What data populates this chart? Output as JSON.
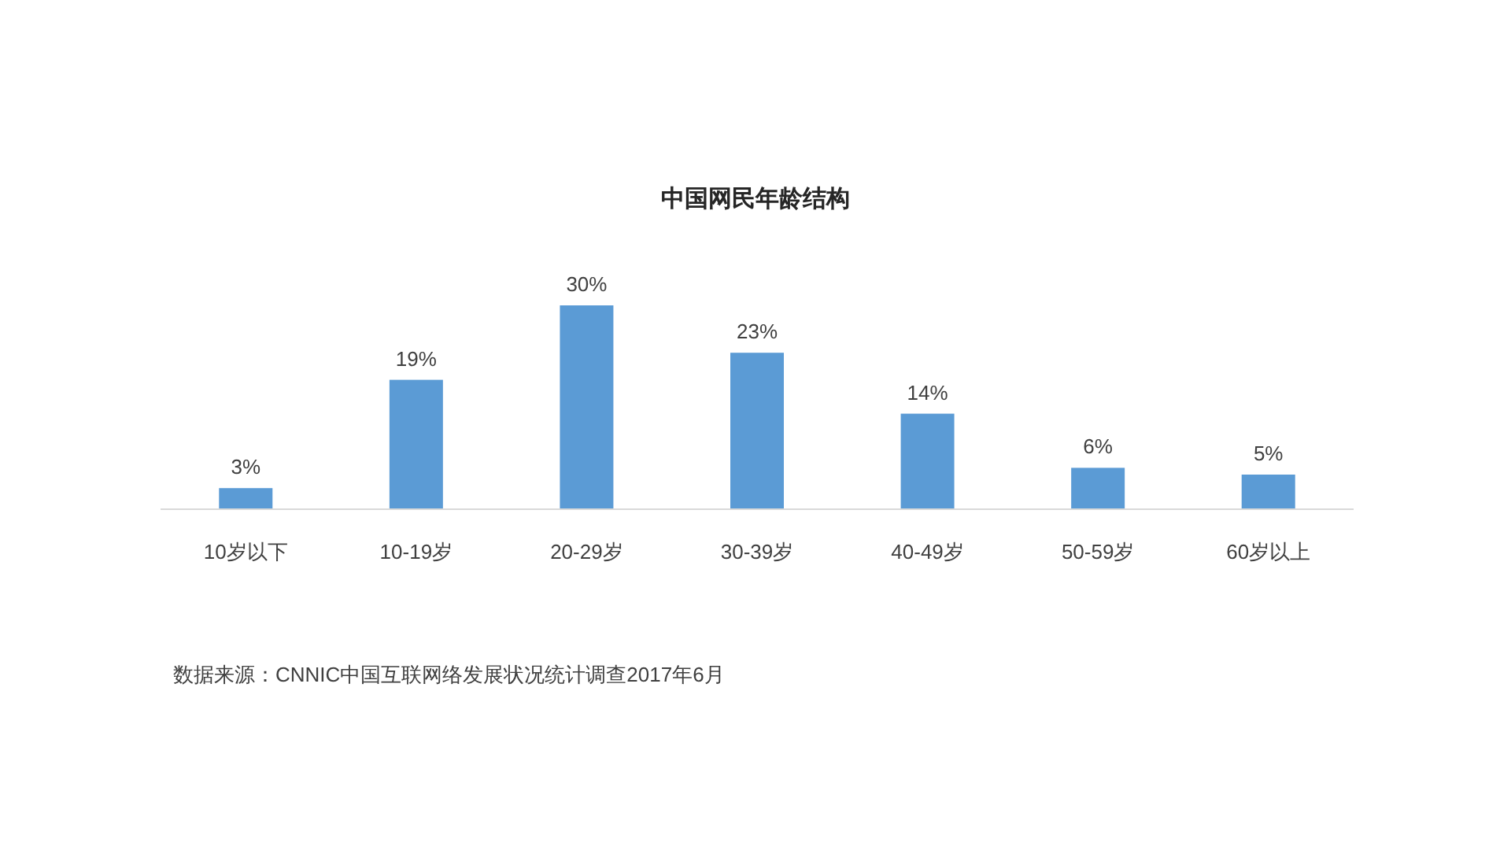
{
  "chart_data": {
    "type": "bar",
    "title": "中国网民年龄结构",
    "categories": [
      "10岁以下",
      "10-19岁",
      "20-29岁",
      "30-39岁",
      "40-49岁",
      "50-59岁",
      "60岁以上"
    ],
    "values": [
      3,
      19,
      30,
      23,
      14,
      6,
      5
    ],
    "color": "#5b9bd5",
    "value_labels": [
      "3%",
      "19%",
      "30%",
      "23%",
      "14%",
      "6%",
      "5%"
    ],
    "annotations": [
      "数据来源：CNNIC中国互联网络发展状况统计调查2017年6月"
    ]
  }
}
